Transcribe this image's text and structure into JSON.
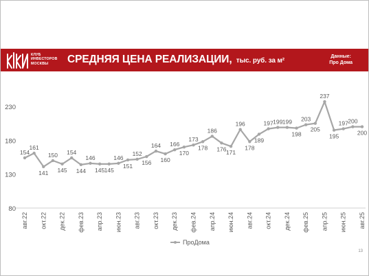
{
  "header": {
    "logo_lines": [
      "КЛУБ",
      "ИНВЕСТОРОВ",
      "МОСКВЫ"
    ],
    "title": "СРЕДНЯЯ ЦЕНА РЕАЛИЗАЦИИ,",
    "unit": "тыс. руб. за м²",
    "source_label": "Данные:",
    "source_value": "Про Дома",
    "brand_color": "#b3171c"
  },
  "page_number": "13",
  "chart_data": {
    "type": "line",
    "title": "",
    "xlabel": "",
    "ylabel": "",
    "ylim": [
      80,
      250
    ],
    "yticks": [
      80,
      130,
      180,
      230
    ],
    "grid": false,
    "legend_position": "bottom",
    "categories": [
      "авг.22",
      "сен.22",
      "окт.22",
      "ноя.22",
      "дек.22",
      "янв.23",
      "фев.23",
      "мар.23",
      "апр.23",
      "май.23",
      "июн.23",
      "июл.23",
      "авг.23",
      "сен.23",
      "окт.23",
      "ноя.23",
      "дек.23",
      "янв.24",
      "фев.24",
      "мар.24",
      "апр.24",
      "май.24",
      "июн.24",
      "июл.24",
      "авг.24",
      "сен.24",
      "окт.24",
      "ноя.24",
      "дек.24",
      "янв.25",
      "фев.25",
      "мар.25",
      "апр.25",
      "май.25",
      "июн.25",
      "июл.25",
      "авг.25"
    ],
    "tick_labels": [
      "авг.22",
      "окт.22",
      "дек.22",
      "фев.23",
      "апр.23",
      "июн.23",
      "авг.23",
      "окт.23",
      "дек.23",
      "фев.24",
      "апр.24",
      "июн.24",
      "авг.24",
      "окт.24",
      "дек.24",
      "фев.25",
      "апр.25",
      "июн.25",
      "авг.25"
    ],
    "series": [
      {
        "name": "ПроДома",
        "color": "#a6a6a6",
        "values": [
          154,
          161,
          141,
          150,
          145,
          154,
          144,
          146,
          145,
          145,
          146,
          151,
          152,
          156,
          164,
          160,
          166,
          170,
          173,
          178,
          186,
          176,
          171,
          196,
          178,
          189,
          197,
          199,
          199,
          198,
          203,
          205,
          237,
          195,
          197,
          200,
          200
        ]
      }
    ]
  }
}
